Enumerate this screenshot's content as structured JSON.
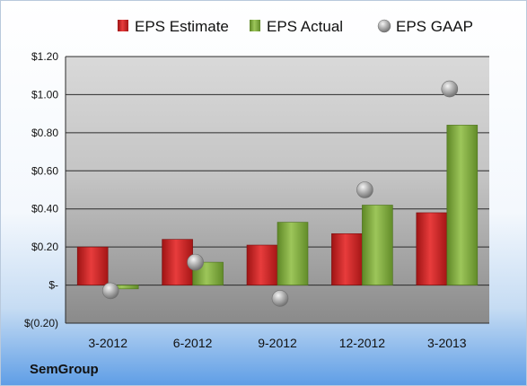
{
  "company": "SemGroup",
  "chart_data": {
    "type": "bar",
    "categories": [
      "3-2012",
      "6-2012",
      "9-2012",
      "12-2012",
      "3-2013"
    ],
    "series": [
      {
        "name": "EPS Estimate",
        "kind": "bar",
        "color": "#d42c2c",
        "values": [
          0.2,
          0.24,
          0.21,
          0.27,
          0.38
        ]
      },
      {
        "name": "EPS Actual",
        "kind": "bar",
        "color": "#86b144",
        "values": [
          -0.02,
          0.12,
          0.33,
          0.42,
          0.84
        ]
      },
      {
        "name": "EPS GAAP",
        "kind": "scatter",
        "color": "#a8a8a8",
        "values": [
          -0.03,
          0.12,
          -0.07,
          0.5,
          1.03
        ]
      }
    ],
    "yticks": [
      1.2,
      1.0,
      0.8,
      0.6,
      0.4,
      0.2,
      0,
      -0.2
    ],
    "ytick_labels": [
      "$1.20",
      "$1.00",
      "$0.80",
      "$0.60",
      "$0.40",
      "$0.20",
      "$-",
      "$(0.20)"
    ],
    "ylim": [
      -0.2,
      1.2
    ],
    "grid": true,
    "legend_position": "top"
  }
}
